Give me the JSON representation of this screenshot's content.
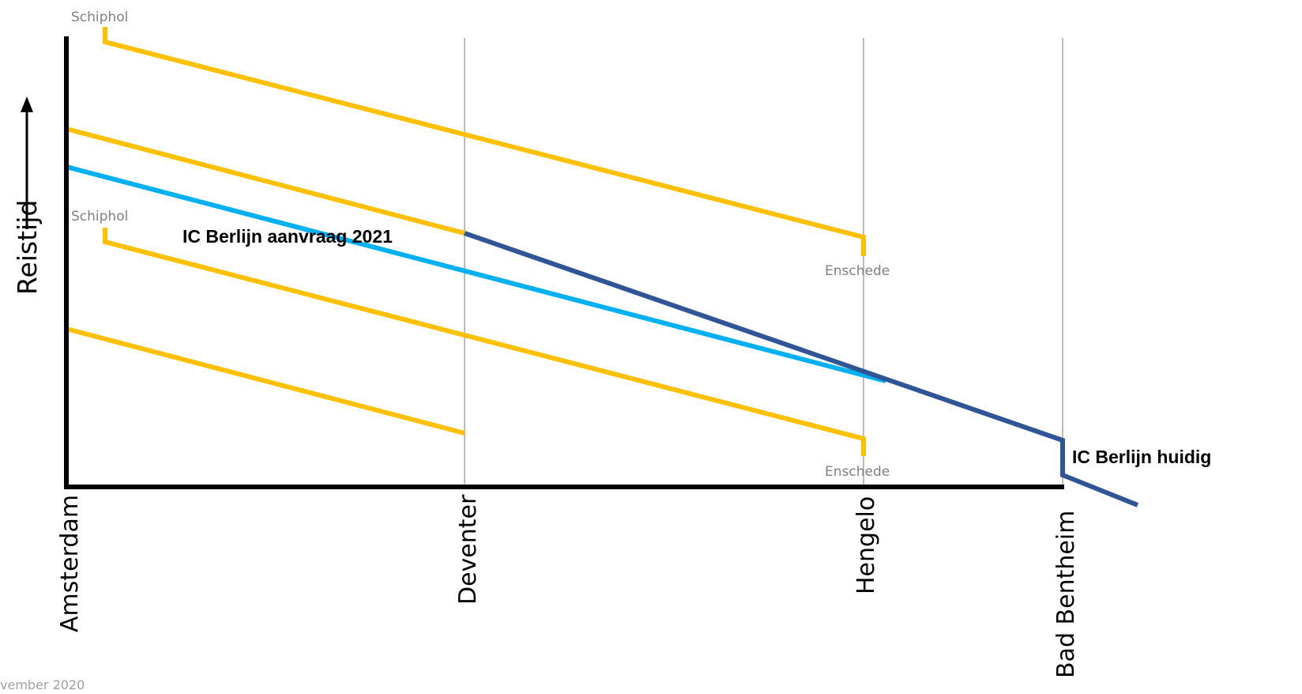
{
  "axes": {
    "y_title": "Reistijd"
  },
  "stations": [
    "Amsterdam",
    "Deventer",
    "Hengelo",
    "Bad Bentheim"
  ],
  "labels": {
    "schiphol_top": "Schiphol",
    "schiphol_mid": "Schiphol",
    "enschede_top": "Enschede",
    "enschede_bottom": "Enschede",
    "ic_aanvraag": "IC Berlijn aanvraag 2021",
    "ic_huidig": "IC Berlijn huidig",
    "footer": "vember 2020"
  },
  "colors": {
    "yellow_lines": "#FFC000",
    "ic_aanvraag": "#00B0F0",
    "ic_huidig": "#2F5597",
    "axis": "#000000",
    "gridlines": "#A6A6A6"
  }
}
